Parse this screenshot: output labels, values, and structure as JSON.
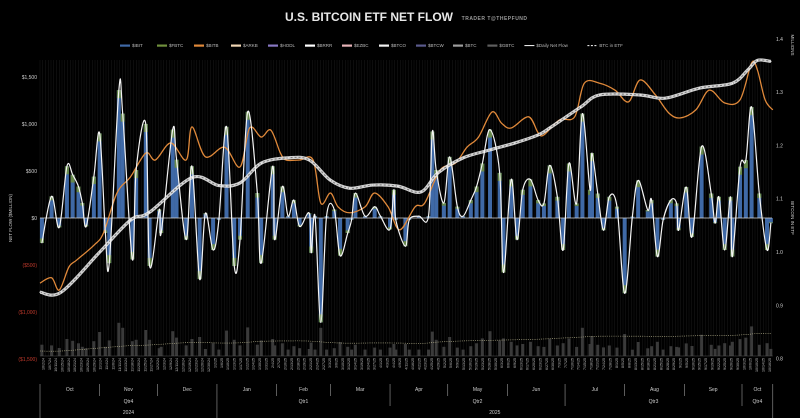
{
  "header": {
    "title": "U.S. BITCOIN ETF NET FLOW",
    "subtitle": "TRADER T@THEPFUND"
  },
  "legend": [
    {
      "label": "$IBIT",
      "color": "#3f69a6",
      "style": "bar"
    },
    {
      "label": "$FBTC",
      "color": "#6f8f3c",
      "style": "bar"
    },
    {
      "label": "$BITB",
      "color": "#e0893a",
      "style": "bar"
    },
    {
      "label": "$ARKB",
      "color": "#f1d6b5",
      "style": "bar"
    },
    {
      "label": "$HODL",
      "color": "#8878c4",
      "style": "bar"
    },
    {
      "label": "$BRRR",
      "color": "#ffffff",
      "style": "bar"
    },
    {
      "label": "$EZBC",
      "color": "#e6b3b8",
      "style": "bar"
    },
    {
      "label": "$BTCO",
      "color": "#f2f2f2",
      "style": "bar"
    },
    {
      "label": "$BTCW",
      "color": "#5a5a8c",
      "style": "bar"
    },
    {
      "label": "$BTC",
      "color": "#9d9d9d",
      "style": "bar"
    },
    {
      "label": "$GBTC",
      "color": "#5e5e5e",
      "style": "bar"
    },
    {
      "label": "$Daily Net Flow",
      "color": "#ffffff",
      "style": "line"
    },
    {
      "label": "BTC in ETF",
      "color": "#ffffff",
      "style": "dashed"
    }
  ],
  "chart_data": {
    "type": "bar",
    "title": "U.S. BITCOIN ETF NET FLOW",
    "ylabel": "NET FLOW ($MILLION)",
    "y2label": "BITCOIN IN ETF",
    "y2unit": "MILLIONS",
    "ylim": [
      -1500,
      1500
    ],
    "y2lim": [
      0.8,
      1.4
    ],
    "y_ticks": [
      "$1,500",
      "$1,000",
      "$500",
      "$0",
      "($500)",
      "($1,000)",
      "($1,500)"
    ],
    "y_tick_values": [
      1500,
      1000,
      500,
      0,
      -500,
      -1000,
      -1500
    ],
    "y2_ticks": [
      "1.4",
      "1.3",
      "1.2",
      "1.1",
      "1.0",
      "0.9",
      "0.8"
    ],
    "y2_tick_values": [
      1.4,
      1.3,
      1.2,
      1.1,
      1.0,
      0.9,
      0.8
    ],
    "grid": false,
    "legend_position": "top",
    "colors": {
      "bars": "#3f69a6",
      "net_flow_line": "#ffffff",
      "orange_line": "#e0893a",
      "negative_ticks": "#c0392b"
    },
    "daily_net_flow": {
      "name": "$Daily Net Flow",
      "x": [
        "2024-10-02",
        "2024-10-07",
        "2024-10-11",
        "2024-10-15",
        "2024-10-18",
        "2024-10-21",
        "2024-10-23",
        "2024-10-25",
        "2024-10-29",
        "2024-11-01",
        "2024-11-04",
        "2024-11-06",
        "2024-11-11",
        "2024-11-13",
        "2024-11-18",
        "2024-11-20",
        "2024-11-25",
        "2024-11-27",
        "2024-12-02",
        "2024-12-03",
        "2024-12-09",
        "2024-12-11",
        "2024-12-16",
        "2024-12-19",
        "2024-12-23",
        "2024-12-26",
        "2024-12-30",
        "2025-01-02",
        "2025-01-06",
        "2025-01-10",
        "2025-01-13",
        "2025-01-17",
        "2025-01-22",
        "2025-01-24",
        "2025-01-30",
        "2025-01-31",
        "2025-02-04",
        "2025-02-07",
        "2025-02-10",
        "2025-02-13",
        "2025-02-18",
        "2025-02-19",
        "2025-02-21",
        "2025-02-24",
        "2025-02-27",
        "2025-03-03",
        "2025-03-06",
        "2025-03-10",
        "2025-03-12",
        "2025-03-14",
        "2025-03-19",
        "2025-03-24",
        "2025-03-27",
        "2025-04-01",
        "2025-04-03",
        "2025-04-04",
        "2025-04-09",
        "2025-04-11",
        "2025-04-16",
        "2025-04-21",
        "2025-04-23",
        "2025-04-25",
        "2025-04-29",
        "2025-05-02",
        "2025-05-06",
        "2025-05-09",
        "2025-05-13",
        "2025-05-16",
        "2025-05-19",
        "2025-05-23",
        "2025-05-28",
        "2025-05-30",
        "2025-06-03",
        "2025-06-06",
        "2025-06-09",
        "2025-06-13",
        "2025-06-17",
        "2025-06-20",
        "2025-06-23",
        "2025-06-27",
        "2025-06-30",
        "2025-07-03",
        "2025-07-07",
        "2025-07-10",
        "2025-07-14",
        "2025-07-15",
        "2025-07-18",
        "2025-07-21",
        "2025-07-24",
        "2025-07-28",
        "2025-08-01",
        "2025-08-05",
        "2025-08-08",
        "2025-08-13",
        "2025-08-15",
        "2025-08-18",
        "2025-08-21",
        "2025-08-25",
        "2025-08-28",
        "2025-08-29",
        "2025-09-02",
        "2025-09-05",
        "2025-09-10",
        "2025-09-15",
        "2025-09-17",
        "2025-09-19",
        "2025-09-22",
        "2025-09-25",
        "2025-09-26",
        "2025-09-30",
        "2025-10-03",
        "2025-10-06",
        "2025-10-10",
        "2025-10-14",
        "2025-10-16"
      ],
      "values": [
        -265,
        230,
        -100,
        550,
        460,
        335,
        160,
        -90,
        440,
        900,
        -160,
        -480,
        1360,
        1110,
        -440,
        510,
        1000,
        -510,
        90,
        -160,
        940,
        620,
        -230,
        550,
        -650,
        50,
        -340,
        -20,
        970,
        -510,
        -230,
        1130,
        265,
        -480,
        550,
        -230,
        335,
        20,
        190,
        -90,
        50,
        -370,
        20,
        -1110,
        20,
        90,
        -400,
        -160,
        -20,
        265,
        20,
        120,
        20,
        -120,
        300,
        -20,
        -300,
        -20,
        20,
        20,
        920,
        510,
        160,
        650,
        120,
        20,
        190,
        335,
        580,
        940,
        480,
        -580,
        410,
        -230,
        300,
        410,
        190,
        155,
        560,
        225,
        -340,
        580,
        155,
        1110,
        300,
        690,
        260,
        -130,
        225,
        120,
        -800,
        15,
        400,
        85,
        190,
        -410,
        -20,
        190,
        155,
        -130,
        330,
        -200,
        760,
        260,
        -55,
        225,
        -340,
        225,
        -410,
        545,
        615,
        1180,
        260,
        -340,
        -55
      ]
    },
    "btc_in_etf": {
      "name": "BTC in ETF",
      "x": [
        "2024-10-01",
        "2024-10-12",
        "2024-11-01",
        "2024-11-17",
        "2024-11-27",
        "2024-12-19",
        "2025-01-02",
        "2025-01-13",
        "2025-01-24",
        "2025-02-07",
        "2025-02-18",
        "2025-03-01",
        "2025-03-11",
        "2025-03-23",
        "2025-04-05",
        "2025-04-17",
        "2025-04-26",
        "2025-05-09",
        "2025-05-23",
        "2025-06-05",
        "2025-06-17",
        "2025-06-23",
        "2025-07-09",
        "2025-07-19",
        "2025-08-09",
        "2025-08-22",
        "2025-09-09",
        "2025-09-26",
        "2025-10-04",
        "2025-10-09",
        "2025-10-16"
      ],
      "values": [
        0.925,
        0.925,
        1.0,
        1.06,
        1.075,
        1.14,
        1.125,
        1.13,
        1.167,
        1.177,
        1.173,
        1.135,
        1.12,
        1.126,
        1.124,
        1.113,
        1.149,
        1.177,
        1.192,
        1.205,
        1.22,
        1.233,
        1.272,
        1.295,
        1.295,
        1.289,
        1.308,
        1.317,
        1.342,
        1.36,
        1.358
      ]
    },
    "orange_line": {
      "x": [
        "2024-10-01",
        "2024-10-07",
        "2024-10-11",
        "2024-10-16",
        "2024-10-20",
        "2024-10-29",
        "2024-11-03",
        "2024-11-10",
        "2024-11-17",
        "2024-11-25",
        "2024-11-30",
        "2024-12-08",
        "2024-12-16",
        "2024-12-19",
        "2024-12-26",
        "2025-01-05",
        "2025-01-13",
        "2025-01-18",
        "2025-01-24",
        "2025-01-29",
        "2025-02-03",
        "2025-02-06",
        "2025-02-13",
        "2025-02-20",
        "2025-02-24",
        "2025-03-01",
        "2025-03-05",
        "2025-03-11",
        "2025-03-19",
        "2025-03-24",
        "2025-03-31",
        "2025-04-06",
        "2025-04-14",
        "2025-04-19",
        "2025-04-27",
        "2025-05-05",
        "2025-05-11",
        "2025-05-17",
        "2025-05-24",
        "2025-05-29",
        "2025-06-03",
        "2025-06-12",
        "2025-06-17",
        "2025-06-20",
        "2025-06-28",
        "2025-07-06",
        "2025-07-11",
        "2025-07-19",
        "2025-07-27",
        "2025-08-03",
        "2025-08-09",
        "2025-08-17",
        "2025-08-24",
        "2025-08-30",
        "2025-09-07",
        "2025-09-14",
        "2025-09-22",
        "2025-09-30",
        "2025-10-06",
        "2025-10-09",
        "2025-10-13",
        "2025-10-17"
      ],
      "values": [
        0.942,
        0.952,
        0.929,
        0.972,
        0.985,
        1.013,
        1.036,
        1.111,
        1.141,
        1.186,
        1.173,
        1.205,
        1.173,
        1.235,
        1.179,
        1.197,
        1.16,
        1.233,
        1.216,
        1.229,
        1.186,
        1.173,
        1.173,
        1.173,
        1.092,
        1.111,
        1.085,
        1.074,
        1.085,
        1.111,
        1.085,
        1.042,
        1.085,
        1.092,
        1.154,
        1.167,
        1.197,
        1.216,
        1.263,
        1.242,
        1.233,
        1.254,
        1.224,
        1.22,
        1.248,
        1.254,
        1.317,
        1.317,
        1.304,
        1.282,
        1.323,
        1.295,
        1.261,
        1.252,
        1.267,
        1.304,
        1.28,
        1.286,
        1.355,
        1.342,
        1.286,
        1.267
      ]
    },
    "x_tick_labels": [
      "10/2/24",
      "10/7/24",
      "10/11/24",
      "10/15/24",
      "10/18/24",
      "10/21/24",
      "10/23/24",
      "10/25/24",
      "10/29/24",
      "11/1/24",
      "11/4/24",
      "11/6/24",
      "11/11/24",
      "11/13/24",
      "11/18/24",
      "11/20/24",
      "11/25/24",
      "11/27/24",
      "12/2/24",
      "12/3/24",
      "12/9/24",
      "12/11/24",
      "12/16/24",
      "12/19/24",
      "12/23/24",
      "12/26/24",
      "12/30/24",
      "1/2/25",
      "1/6/25",
      "1/10/25",
      "1/13/25",
      "1/17/25",
      "1/22/25",
      "1/24/25",
      "1/30/25",
      "1/31/25",
      "2/4/25",
      "2/7/25",
      "2/10/25",
      "2/13/25",
      "2/18/25",
      "2/19/25",
      "2/21/25",
      "2/24/25",
      "2/27/25",
      "3/3/25",
      "3/6/25",
      "3/10/25",
      "3/12/25",
      "3/14/25",
      "3/19/25",
      "3/24/25",
      "3/27/25",
      "4/1/25",
      "4/3/25",
      "4/4/25",
      "4/9/25",
      "4/11/25",
      "4/16/25",
      "4/21/25",
      "4/23/25",
      "4/25/25",
      "4/29/25",
      "5/2/25",
      "5/6/25",
      "5/9/25",
      "5/13/25",
      "5/16/25",
      "5/19/25",
      "5/23/25",
      "5/28/25",
      "5/30/25",
      "6/3/25",
      "6/6/25",
      "6/9/25",
      "6/13/25",
      "6/17/25",
      "6/20/25",
      "6/23/25",
      "6/27/25",
      "6/30/25",
      "7/3/25",
      "7/7/25",
      "7/10/25",
      "7/14/25",
      "7/15/25",
      "7/18/25",
      "7/21/25",
      "7/24/25",
      "7/28/25",
      "8/1/25",
      "8/5/25",
      "8/8/25",
      "8/13/25",
      "8/15/25",
      "8/18/25",
      "8/21/25",
      "8/25/25",
      "8/28/25",
      "8/29/25",
      "9/2/25",
      "9/5/25",
      "9/10/25",
      "9/15/25",
      "9/17/25",
      "9/19/25",
      "9/22/25",
      "9/25/25",
      "9/26/25",
      "9/30/25",
      "10/3/25",
      "10/6/25",
      "10/10/25",
      "10/14/25",
      "10/16/25"
    ],
    "months": [
      {
        "label": "Oct",
        "start": "2024-10-01"
      },
      {
        "label": "Nov",
        "start": "2024-11-01"
      },
      {
        "label": "Dec",
        "start": "2024-12-01"
      },
      {
        "label": "Jan",
        "start": "2025-01-01"
      },
      {
        "label": "Feb",
        "start": "2025-02-01"
      },
      {
        "label": "Mar",
        "start": "2025-03-01"
      },
      {
        "label": "Apr",
        "start": "2025-04-01"
      },
      {
        "label": "May",
        "start": "2025-05-01"
      },
      {
        "label": "Jun",
        "start": "2025-06-01"
      },
      {
        "label": "Jul",
        "start": "2025-07-01"
      },
      {
        "label": "Aug",
        "start": "2025-08-01"
      },
      {
        "label": "Sep",
        "start": "2025-09-01"
      },
      {
        "label": "Oct",
        "start": "2025-10-01"
      }
    ],
    "quarters": [
      {
        "label": "Qtr4",
        "start": "2024-10-01"
      },
      {
        "label": "Qtr1",
        "start": "2025-01-01"
      },
      {
        "label": "Qtr2",
        "start": "2025-04-01"
      },
      {
        "label": "Qtr3",
        "start": "2025-07-01"
      },
      {
        "label": "Qtr4",
        "start": "2025-10-01"
      }
    ],
    "years": [
      {
        "label": "2024",
        "start": "2024-10-01"
      },
      {
        "label": "2025",
        "start": "2025-01-01"
      }
    ],
    "x_end": "2025-10-17"
  }
}
